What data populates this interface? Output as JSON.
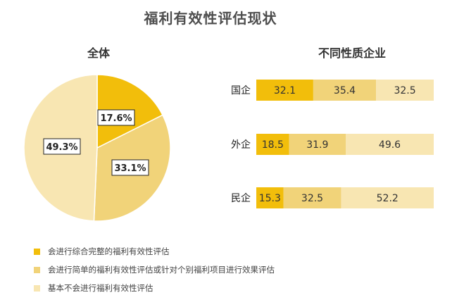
{
  "title": "福利有效性评估现状",
  "subtitle_left": "全体",
  "subtitle_right": "不同性质企业",
  "legend": [
    {
      "label": "会进行综合完整的福利有效性评估",
      "color": "#f2be0b"
    },
    {
      "label": "会进行简单的福利有效性评估或针对个别福利项目进行效果评估",
      "color": "#f1d379"
    },
    {
      "label": "基本不会进行福利有效性评估",
      "color": "#f8e6b2"
    }
  ],
  "chart_data": [
    {
      "type": "pie",
      "title": "全体",
      "labels": [
        "会进行综合完整的福利有效性评估",
        "会进行简单的福利有效性评估或针对个别福利项目进行效果评估",
        "基本不会进行福利有效性评估"
      ],
      "values": [
        17.6,
        33.1,
        49.3
      ],
      "value_labels": [
        "17.6%",
        "33.1%",
        "49.3%"
      ],
      "colors": [
        "#f2be0b",
        "#f1d379",
        "#f8e6b2"
      ]
    },
    {
      "type": "bar",
      "orientation": "horizontal",
      "stacked": "100%",
      "title": "不同性质企业",
      "categories": [
        "国企",
        "外企",
        "民企"
      ],
      "series": [
        {
          "name": "会进行综合完整的福利有效性评估",
          "values": [
            32.1,
            18.5,
            15.3
          ],
          "color": "#f2be0b"
        },
        {
          "name": "会进行简单的福利有效性评估或针对个别福利项目进行效果评估",
          "values": [
            35.4,
            31.9,
            32.5
          ],
          "color": "#f1d379"
        },
        {
          "name": "基本不会进行福利有效性评估",
          "values": [
            32.5,
            49.6,
            52.2
          ],
          "color": "#f8e6b2"
        }
      ],
      "xlim": [
        0,
        100
      ],
      "grid": false
    }
  ]
}
